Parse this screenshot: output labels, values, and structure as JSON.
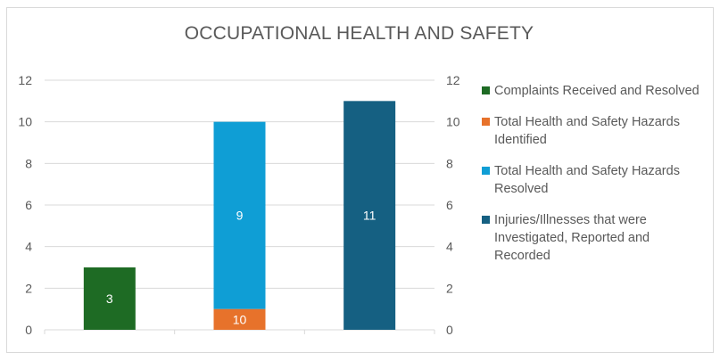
{
  "chart_data": {
    "type": "bar",
    "stacked": true,
    "title": "OCCUPATIONAL HEALTH AND SAFETY",
    "categories": [
      "",
      "",
      ""
    ],
    "series": [
      {
        "name": "Complaints Received and Resolved",
        "color": "#1e6b24",
        "values": [
          3,
          0,
          0
        ],
        "labels": [
          "3",
          "",
          ""
        ]
      },
      {
        "name": "Total Health and Safety Hazards Identified",
        "color": "#e7722b",
        "values": [
          0,
          1,
          0
        ],
        "labels": [
          "",
          "10",
          ""
        ]
      },
      {
        "name": "Total Health and Safety Hazards Resolved",
        "color": "#0f9ed5",
        "values": [
          0,
          9,
          0
        ],
        "labels": [
          "",
          "9",
          ""
        ]
      },
      {
        "name": "Injuries/Illnesses that were Investigated, Reported and Recorded",
        "color": "#156082",
        "values": [
          0,
          0,
          11
        ],
        "labels": [
          "",
          "",
          "11"
        ]
      }
    ],
    "y_ticks": [
      "0",
      "2",
      "4",
      "6",
      "8",
      "10",
      "12"
    ],
    "ylim": [
      0,
      12
    ],
    "secondary_ylim": [
      0,
      12
    ],
    "grid": true,
    "legend": "right"
  }
}
